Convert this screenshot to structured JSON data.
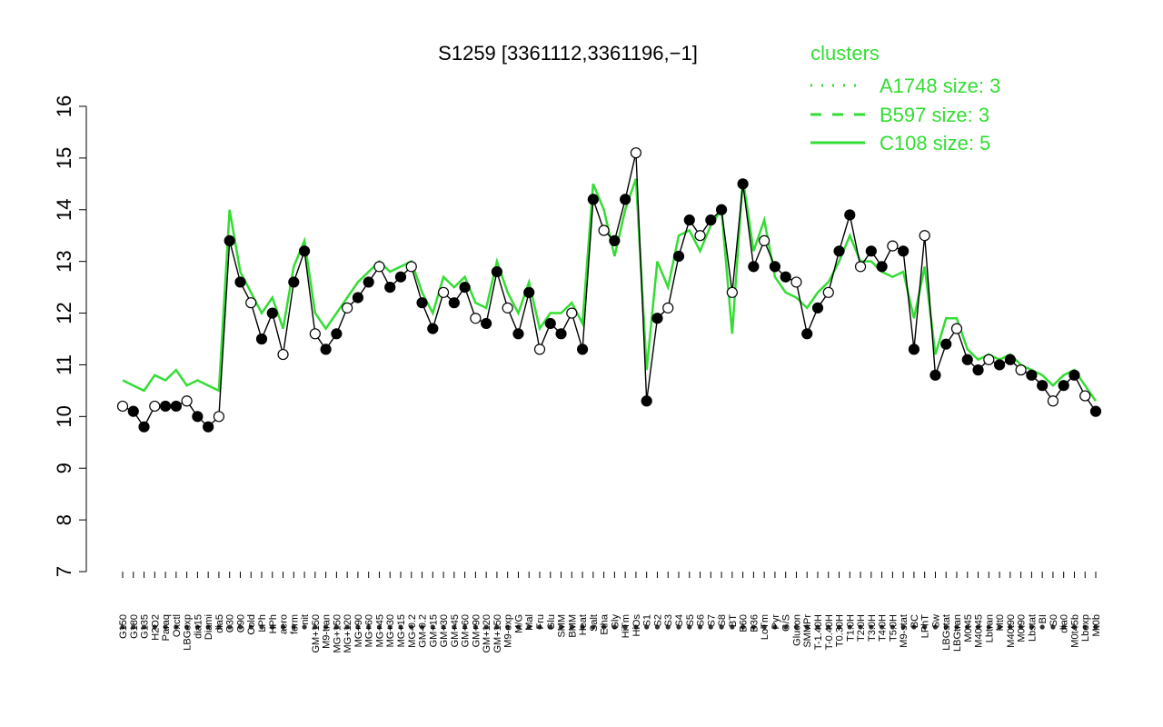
{
  "chart_data": {
    "type": "line",
    "title": "S1259 [3361112,3361196,−1]",
    "xlabel": "",
    "ylabel": "",
    "ylim": [
      7,
      16
    ],
    "yticks": [
      7,
      8,
      9,
      10,
      11,
      12,
      13,
      14,
      15,
      16
    ],
    "x_tick_labels": [
      "G150",
      "G180",
      "G135",
      "H2O2",
      "Paraq",
      "Oxctl",
      "LBGexp",
      "dia15",
      "Diami",
      "dia5",
      "C30",
      "C90",
      "Cold",
      "LPh",
      "HPh",
      "aero",
      "ferm",
      "nit",
      "GM+150",
      "M9-tran",
      "MG+150",
      "MG+120",
      "MG+90",
      "MG+60",
      "MG+45",
      "MG+30",
      "MG+15",
      "MG-0.2",
      "GM-0.2",
      "GM+15",
      "GM+30",
      "GM+45",
      "GM+60",
      "GM+90",
      "GM+120",
      "GM+150",
      "M9-exp",
      "M/G",
      "Mal",
      "Fru",
      "Glu",
      "SMM",
      "BMM",
      "Heat",
      "Salt",
      "Etha",
      "Gly",
      "HiTm",
      "HiOs",
      "S1",
      "S2",
      "S3",
      "S4",
      "S5",
      "S6",
      "S7",
      "S8",
      "BT",
      "B60",
      "B36",
      "LoTm",
      "Pyr",
      "G/S",
      "Glucon",
      "SMMPr",
      "T-1.40H",
      "T-0.40H",
      "T0.30H",
      "T1.0H",
      "T2.0H",
      "T3.0H",
      "T4.0H",
      "T5.0H",
      "M9-stat",
      "BC",
      "LPhT",
      "Sw",
      "LBGstat",
      "LBGtran",
      "M0t45",
      "M40t45",
      "Lbtran",
      "Mt0",
      "M40t90",
      "M0t90",
      "Lbstat",
      "BI",
      "S0",
      "dia0",
      "M0t45b",
      "Lbexp",
      "Mt0b"
    ],
    "legend": {
      "title": "clusters",
      "placement": "top-right",
      "entries": [
        {
          "label": "A1748 size: 3",
          "style": "dotted"
        },
        {
          "label": "B597 size: 3",
          "style": "dashed"
        },
        {
          "label": "C108 size: 5",
          "style": "solid"
        }
      ]
    },
    "series": [
      {
        "style": "black-with-points",
        "values": [
          10.2,
          10.1,
          9.8,
          10.2,
          10.2,
          10.2,
          10.3,
          10.0,
          9.8,
          10.0,
          13.4,
          12.6,
          12.2,
          11.5,
          12.0,
          11.2,
          12.6,
          13.2,
          11.6,
          11.3,
          11.6,
          12.1,
          12.3,
          12.6,
          12.9,
          12.5,
          12.7,
          12.9,
          12.2,
          11.7,
          12.4,
          12.2,
          12.5,
          11.9,
          11.8,
          12.8,
          12.1,
          11.6,
          12.4,
          11.3,
          11.8,
          11.6,
          12.0,
          11.3,
          14.2,
          13.6,
          13.4,
          14.2,
          15.1,
          10.3,
          11.9,
          12.1,
          13.1,
          13.8,
          13.5,
          13.8,
          14.0,
          12.4,
          14.5,
          12.9,
          13.4,
          12.9,
          12.7,
          12.6,
          11.6,
          12.1,
          12.4,
          13.2,
          13.9,
          12.9,
          13.2,
          12.9,
          13.3,
          13.2,
          11.3,
          13.5,
          10.8,
          11.4,
          11.7,
          11.1,
          10.9,
          11.1,
          11.0,
          11.1,
          10.9,
          10.8,
          10.6,
          10.3,
          10.6,
          10.8,
          10.4,
          10.1
        ]
      },
      {
        "style": "green-solid",
        "values": [
          10.7,
          10.6,
          10.5,
          10.8,
          10.7,
          10.9,
          10.6,
          10.7,
          10.6,
          10.5,
          14.0,
          12.8,
          12.4,
          12.0,
          12.3,
          11.7,
          12.9,
          13.4,
          12.0,
          11.7,
          12.0,
          12.3,
          12.6,
          12.8,
          13.0,
          12.8,
          12.9,
          13.0,
          12.4,
          12.0,
          12.7,
          12.5,
          12.7,
          12.2,
          12.1,
          13.0,
          12.4,
          12.0,
          12.6,
          11.7,
          12.0,
          12.0,
          12.2,
          11.8,
          14.5,
          14.0,
          13.1,
          14.0,
          14.6,
          10.9,
          13.0,
          12.5,
          13.5,
          13.6,
          13.2,
          13.7,
          14.0,
          11.6,
          14.6,
          13.2,
          13.8,
          12.7,
          12.4,
          12.3,
          12.1,
          12.4,
          12.6,
          13.0,
          13.5,
          13.0,
          13.0,
          12.8,
          12.7,
          12.8,
          11.9,
          12.9,
          11.2,
          11.9,
          11.9,
          11.3,
          11.1,
          11.2,
          11.1,
          11.2,
          11.0,
          10.9,
          10.8,
          10.6,
          10.8,
          10.9,
          10.6,
          10.3
        ]
      }
    ]
  }
}
